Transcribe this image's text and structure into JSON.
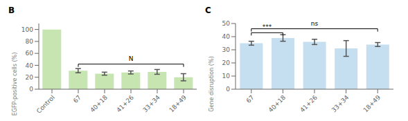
{
  "chart_data": [
    {
      "type": "bar",
      "title": "B",
      "categories": [
        "Control",
        "67",
        "40+18",
        "41+26",
        "33+34",
        "18+49"
      ],
      "values": [
        100,
        31,
        26,
        28,
        29,
        20
      ],
      "errors": [
        0,
        3.5,
        2.5,
        2.5,
        4,
        6
      ],
      "color": "#c6e5b0",
      "ylabel": "EGFP-positive cells (%)",
      "ylim": [
        0,
        110
      ],
      "yticks": [
        0,
        20,
        40,
        60,
        80,
        100
      ],
      "annotations": [
        {
          "from": "67",
          "to": "18+49",
          "y": 42,
          "label": "N"
        }
      ]
    },
    {
      "type": "bar",
      "title": "C",
      "categories": [
        "67",
        "40+18",
        "41+26",
        "33+34",
        "18+49"
      ],
      "values": [
        35,
        39,
        36,
        31,
        34
      ],
      "errors": [
        1.5,
        2.5,
        2,
        6,
        1.5
      ],
      "color": "#c5dff0",
      "ylabel": "Gene disruption (%)",
      "ylim": [
        0,
        50
      ],
      "yticks": [
        0,
        10,
        20,
        30,
        40,
        50
      ],
      "annotations": [
        {
          "from": "67",
          "to": "40+18",
          "y": 43,
          "label": "***"
        },
        {
          "from": "67",
          "to": "18+49",
          "y": 46,
          "label": "ns"
        }
      ]
    }
  ]
}
